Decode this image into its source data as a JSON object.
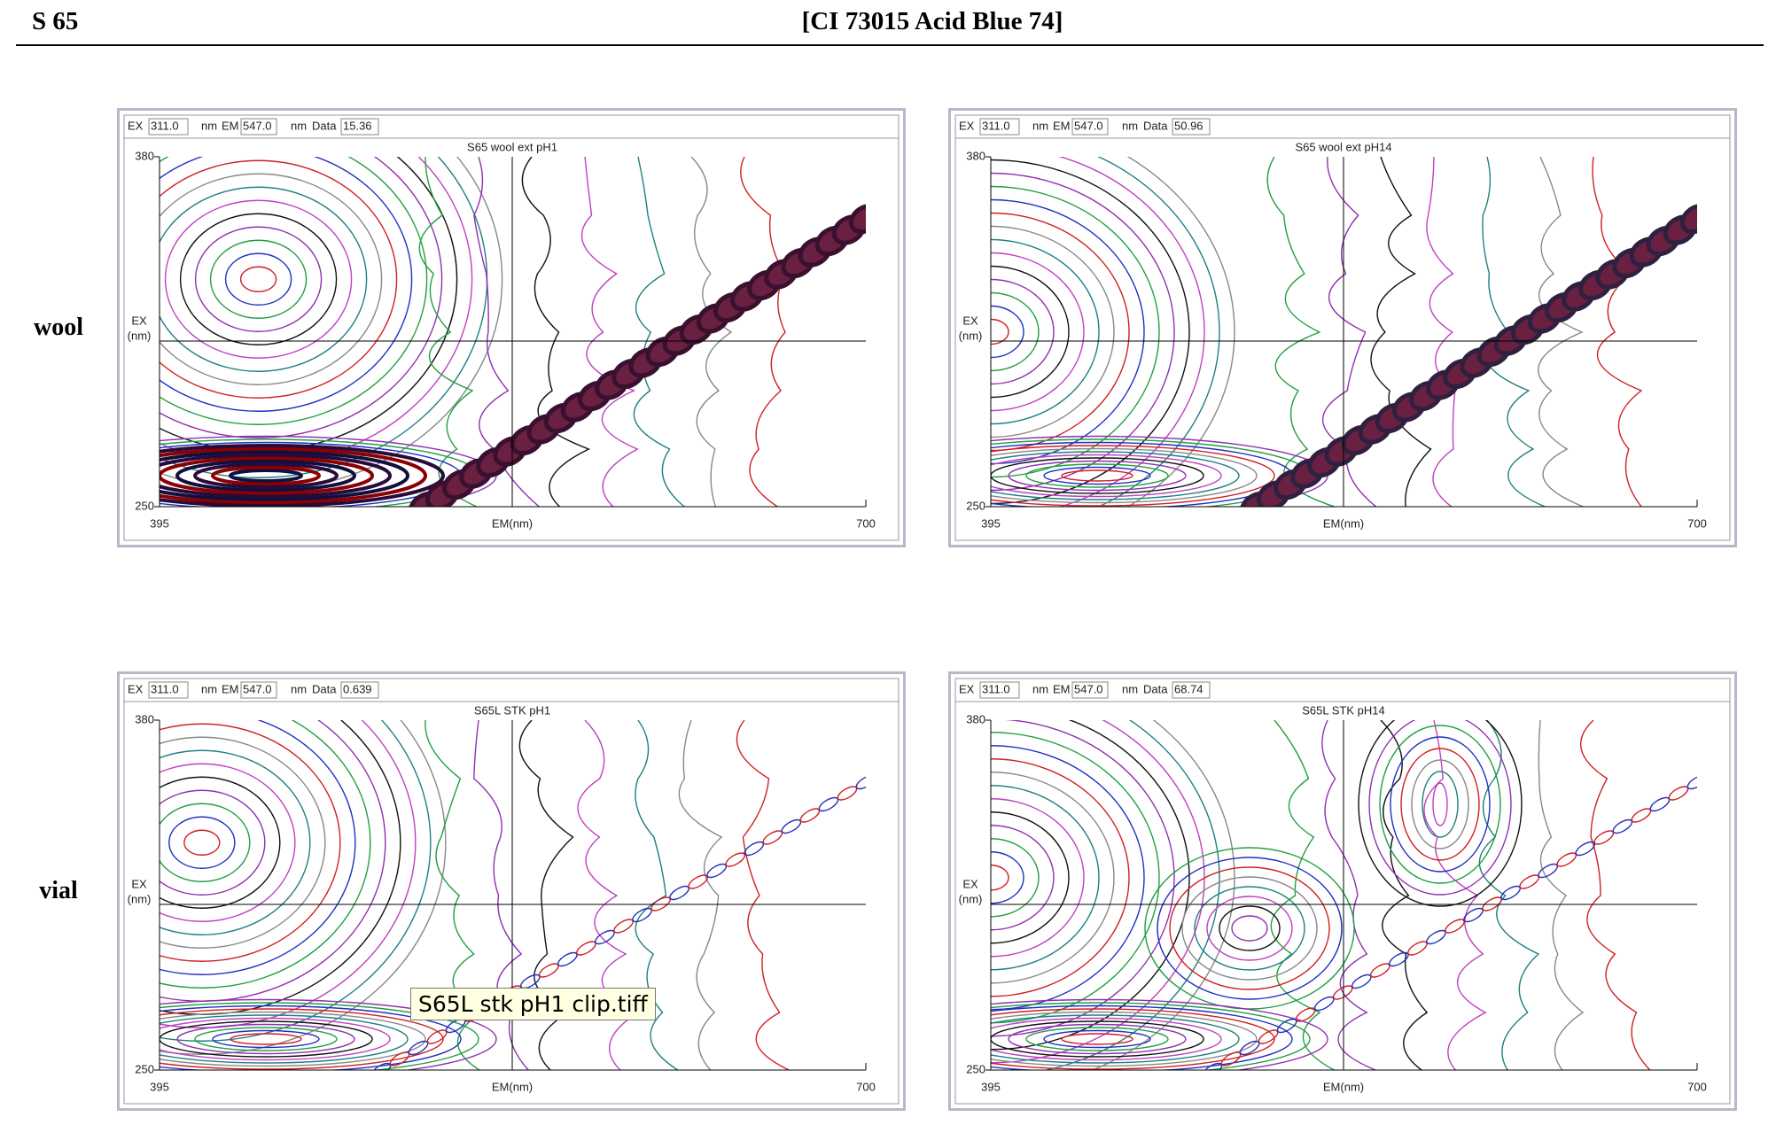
{
  "header": {
    "left": "S 65",
    "title": "[CI 73015 Acid Blue 74]"
  },
  "rows": [
    {
      "label": "wool",
      "panels": [
        {
          "ex_label": "EX",
          "ex": "311.0",
          "ex_unit": "nm",
          "em_label": "EM",
          "em": "547.0",
          "em_unit": "nm",
          "data_label": "Data",
          "data": "15.36",
          "title": "S65 wool ext pH1",
          "y_top": "380",
          "y_bottom": "250",
          "y_axis": "EX",
          "y_unit": "(nm)",
          "x_left": "395",
          "x_right": "700",
          "x_axis": "EM(nm)"
        },
        {
          "ex_label": "EX",
          "ex": "311.0",
          "ex_unit": "nm",
          "em_label": "EM",
          "em": "547.0",
          "em_unit": "nm",
          "data_label": "Data",
          "data": "50.96",
          "title": "S65 wool ext pH14",
          "y_top": "380",
          "y_bottom": "250",
          "y_axis": "EX",
          "y_unit": "(nm)",
          "x_left": "395",
          "x_right": "700",
          "x_axis": "EM(nm)"
        }
      ]
    },
    {
      "label": "vial",
      "panels": [
        {
          "ex_label": "EX",
          "ex": "311.0",
          "ex_unit": "nm",
          "em_label": "EM",
          "em": "547.0",
          "em_unit": "nm",
          "data_label": "Data",
          "data": "0.639",
          "title": "S65L STK pH1",
          "y_top": "380",
          "y_bottom": "250",
          "y_axis": "EX",
          "y_unit": "(nm)",
          "x_left": "395",
          "x_right": "700",
          "x_axis": "EM(nm)"
        },
        {
          "ex_label": "EX",
          "ex": "311.0",
          "ex_unit": "nm",
          "em_label": "EM",
          "em": "547.0",
          "em_unit": "nm",
          "data_label": "Data",
          "data": "68.74",
          "title": "S65L STK pH14",
          "y_top": "380",
          "y_bottom": "250",
          "y_axis": "EX",
          "y_unit": "(nm)",
          "x_left": "395",
          "x_right": "700",
          "x_axis": "EM(nm)"
        }
      ]
    }
  ],
  "tooltip": "S65L stk pH1 clip.tiff"
}
